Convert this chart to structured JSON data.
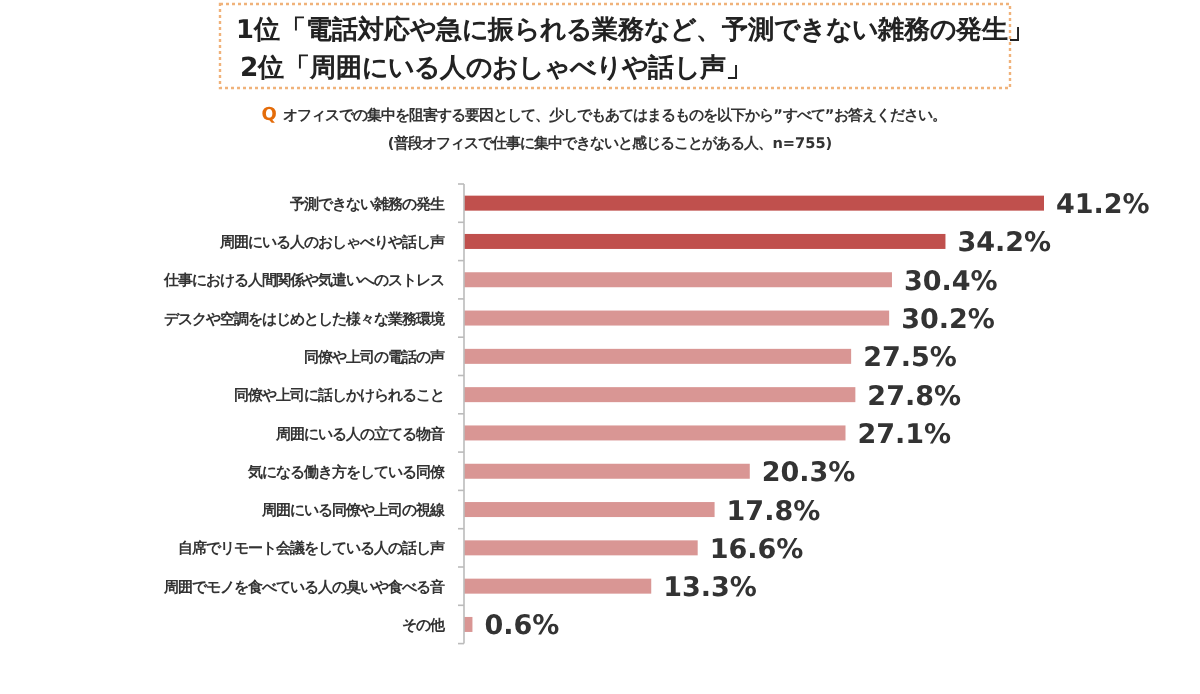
{
  "chart_data": {
    "type": "bar",
    "orientation": "horizontal",
    "title": "1位「電話対応や急に振られる業務など、予測できない雑務の発生」",
    "subtitle": "2位「周囲にいる人のおしゃべりや話し声」",
    "annotations": [
      "Q",
      "オフィスでの集中を阻害する要因として、少しでもあてはまるものを以下から”すべて”お答えください。",
      "(普段オフィスで仕事に集中できないと感じることがある人、n=755)"
    ],
    "categories": [
      "予測できない雑務の発生",
      "周囲にいる人のおしゃべりや話し声",
      "仕事における人間関係や気遣いへのストレス",
      "デスクや空調をはじめとした様々な業務環境",
      "同僚や上司の電話の声",
      "同僚や上司に話しかけられること",
      "周囲にいる人の立てる物音",
      "気になる働き方をしている同僚",
      "周囲にいる同僚や上司の視線",
      "自席でリモート会議をしている人の話し声",
      "周囲でモノを食べている人の臭いや食べる音",
      "その他"
    ],
    "values": [
      41.2,
      34.2,
      30.4,
      30.2,
      27.5,
      27.8,
      27.1,
      20.3,
      17.8,
      16.6,
      13.3,
      0.6
    ],
    "value_labels": [
      "41.2%",
      "34.2%",
      "30.4%",
      "30.2%",
      "27.5%",
      "27.8%",
      "27.1%",
      "20.3%",
      "17.8%",
      "16.6%",
      "13.3%",
      "0.6%"
    ],
    "colors": [
      "#c0504d",
      "#c0504d",
      "#d99694",
      "#d99694",
      "#d99694",
      "#d99694",
      "#d99694",
      "#d99694",
      "#d99694",
      "#d99694",
      "#d99694",
      "#d99694"
    ]
  }
}
